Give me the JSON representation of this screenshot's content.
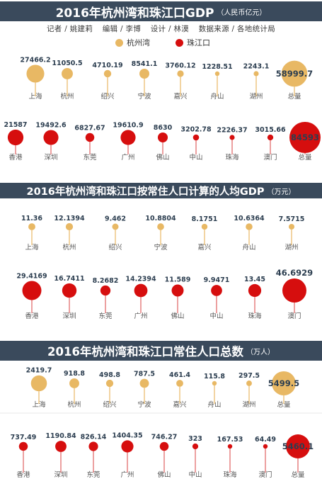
{
  "colors": {
    "hzw": "#e8b864",
    "zjk": "#d60e0e",
    "banner": "#3a4a5c",
    "stem_hzw": "#e8b864",
    "stem_zjk": "#e06060"
  },
  "titles": {
    "gdp": "2016年杭州湾和珠江口GDP",
    "gdp_unit": "（人民币亿元）",
    "per_capita": "2016年杭州湾和珠江口按常住人口计算的人均GDP",
    "per_capita_unit": "（万元）",
    "population": "2016年杭州湾和珠江口常住人口总数",
    "population_unit": "（万人）"
  },
  "credits": [
    "记者 / 姚建莉",
    "编辑 / 李博",
    "设计 / 林漠",
    "数据来源 / 各地统计局"
  ],
  "legend": [
    {
      "label": "杭州湾",
      "color": "#e8b864"
    },
    {
      "label": "珠江口",
      "color": "#d60e0e"
    }
  ],
  "chart_data": [
    {
      "type": "bubble",
      "title": "2016年杭州湾和珠江口GDP",
      "unit": "（人民币亿元）",
      "series": [
        {
          "name": "杭州湾",
          "color": "#e8b864",
          "categories": [
            "上海",
            "杭州",
            "绍兴",
            "宁波",
            "嘉兴",
            "舟山",
            "湖州",
            "总量"
          ],
          "values": [
            27466.2,
            11050.5,
            4710.19,
            8541.1,
            3760.12,
            1228.51,
            2243.1,
            58999.7
          ],
          "labels": [
            "27466.2",
            "11050.5",
            "4710.19",
            "8541.1",
            "3760.12",
            "1228.51",
            "2243.1",
            "58999.7"
          ]
        },
        {
          "name": "珠江口",
          "color": "#d60e0e",
          "categories": [
            "香港",
            "深圳",
            "东莞",
            "广州",
            "佛山",
            "中山",
            "珠海",
            "澳门",
            "总量"
          ],
          "values": [
            21587,
            19492.6,
            6827.67,
            19610.9,
            8630,
            3202.78,
            2226.37,
            3015.66,
            84593
          ],
          "labels": [
            "21587",
            "19492.6",
            "6827.67",
            "19610.9",
            "8630",
            "3202.78",
            "2226.37",
            "3015.66",
            "84593"
          ]
        }
      ]
    },
    {
      "type": "bubble",
      "title": "2016年杭州湾和珠江口按常住人口计算的人均GDP",
      "unit": "（万元）",
      "series": [
        {
          "name": "杭州湾",
          "color": "#e8b864",
          "categories": [
            "上海",
            "杭州",
            "绍兴",
            "宁波",
            "嘉兴",
            "舟山",
            "湖州"
          ],
          "values": [
            11.36,
            12.1394,
            9.462,
            10.8804,
            8.1751,
            10.6364,
            7.5715
          ],
          "labels": [
            "11.36",
            "12.1394",
            "9.462",
            "10.8804",
            "8.1751",
            "10.6364",
            "7.5715"
          ]
        },
        {
          "name": "珠江口",
          "color": "#d60e0e",
          "categories": [
            "香港",
            "深圳",
            "东莞",
            "广州",
            "佛山",
            "中山",
            "珠海",
            "澳门"
          ],
          "values": [
            29.4169,
            16.7411,
            8.2682,
            14.2394,
            11.589,
            9.9471,
            13.45,
            46.6929
          ],
          "labels": [
            "29.4169",
            "16.7411",
            "8.2682",
            "14.2394",
            "11.589",
            "9.9471",
            "13.45",
            "46.6929"
          ]
        }
      ]
    },
    {
      "type": "bubble",
      "title": "2016年杭州湾和珠江口常住人口总数",
      "unit": "（万人）",
      "series": [
        {
          "name": "杭州湾",
          "color": "#e8b864",
          "categories": [
            "上海",
            "杭州",
            "绍兴",
            "宁波",
            "嘉兴",
            "舟山",
            "湖州",
            "总量"
          ],
          "values": [
            2419.7,
            918.8,
            498.8,
            787.5,
            461.4,
            115.8,
            297.5,
            5499.5
          ],
          "labels": [
            "2419.7",
            "918.8",
            "498.8",
            "787.5",
            "461.4",
            "115.8",
            "297.5",
            "5499.5"
          ]
        },
        {
          "name": "珠江口",
          "color": "#d60e0e",
          "categories": [
            "香港",
            "深圳",
            "东莞",
            "广州",
            "佛山",
            "中山",
            "珠海",
            "澳门",
            "总量"
          ],
          "values": [
            737.49,
            1190.84,
            826.14,
            1404.35,
            746.27,
            323,
            167.53,
            64.49,
            5460.1
          ],
          "labels": [
            "737.49",
            "1190.84",
            "826.14",
            "1404.35",
            "746.27",
            "323",
            "167.53",
            "64.49",
            "5460.1"
          ]
        }
      ]
    }
  ]
}
